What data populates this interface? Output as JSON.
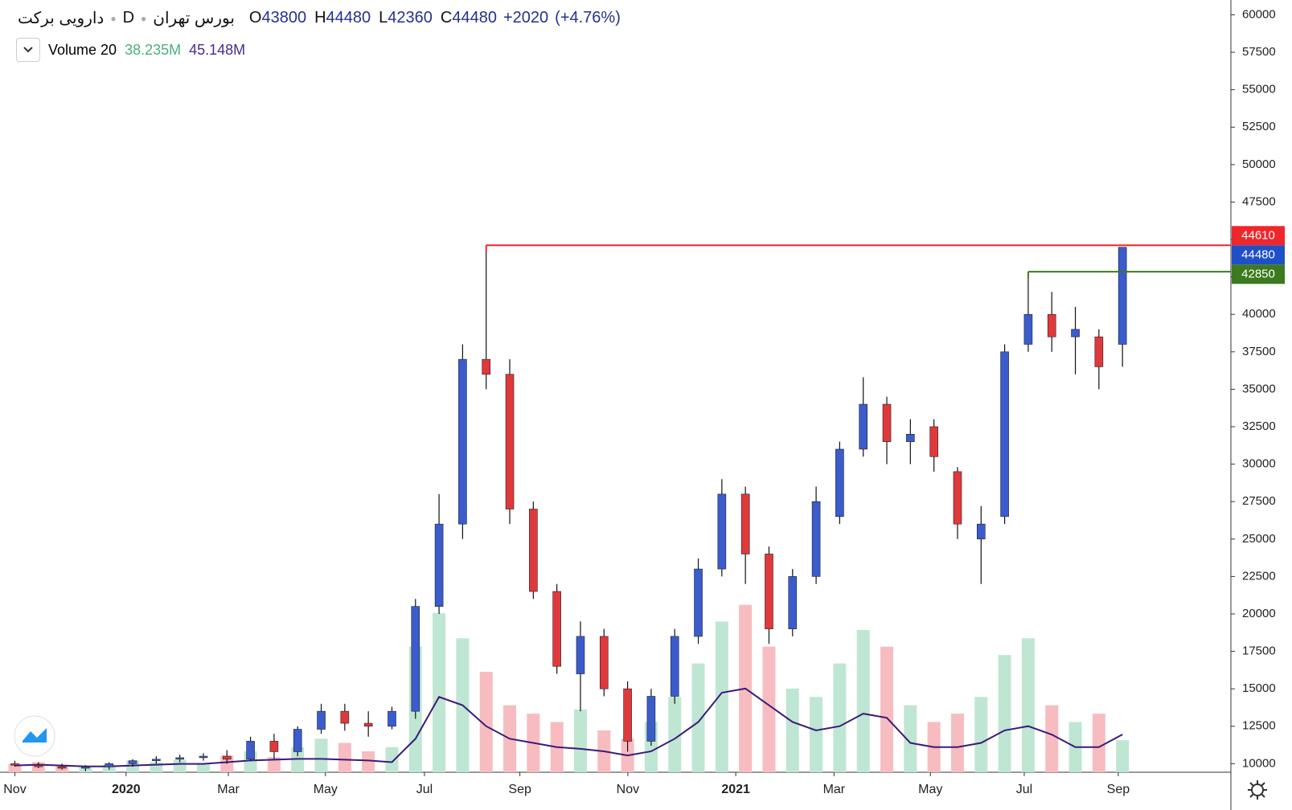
{
  "header": {
    "symbol": "دارویی برکت",
    "interval": "D",
    "exchange": "بورس تهران",
    "ohlc": [
      {
        "key": "O",
        "value": 43800
      },
      {
        "key": "H",
        "value": 44480
      },
      {
        "key": "L",
        "value": 42360
      },
      {
        "key": "C",
        "value": 44480
      }
    ],
    "change": {
      "value": 2020,
      "label": "+2020"
    },
    "change_pct": {
      "value": 4.76,
      "label": "(+4.76%)"
    }
  },
  "legend": {
    "name": "Volume 20",
    "volume": {
      "value": 38.235,
      "label": "38.235M"
    },
    "ma": {
      "value": 45.148,
      "label": "45.148M"
    }
  },
  "chart_data": {
    "type": "candlestick",
    "open": [
      10000,
      9900,
      9800,
      9700,
      9800,
      10000,
      10200,
      10300,
      10400,
      10500,
      10300,
      11500,
      10800,
      12300,
      13500,
      12700,
      12500,
      13500,
      20500,
      26000,
      37000,
      36000,
      27000,
      21500,
      16000,
      18500,
      15000,
      11500,
      14500,
      18500,
      23000,
      28000,
      24000,
      19000,
      22500,
      26500,
      31000,
      34000,
      31500,
      32500,
      29500,
      25000,
      26500,
      38000,
      40000,
      38500,
      38500,
      38000
    ],
    "high": [
      10200,
      10100,
      10000,
      9900,
      10100,
      10300,
      10500,
      10600,
      10700,
      10900,
      11800,
      12000,
      12500,
      14000,
      14000,
      13500,
      13800,
      21000,
      28000,
      38000,
      44610,
      37000,
      27500,
      22000,
      19500,
      19000,
      15500,
      15000,
      19000,
      23700,
      29000,
      28500,
      24500,
      23000,
      28500,
      31500,
      35800,
      34500,
      33000,
      33000,
      29800,
      27200,
      38000,
      42850,
      41500,
      40500,
      39000,
      44480
    ],
    "low": [
      9800,
      9700,
      9600,
      9500,
      9600,
      9800,
      10000,
      10100,
      10200,
      10000,
      10200,
      10300,
      10500,
      12000,
      12200,
      11800,
      12300,
      13000,
      20000,
      25000,
      35000,
      26000,
      21000,
      16000,
      13500,
      14500,
      10800,
      11200,
      14000,
      18000,
      22500,
      22000,
      18000,
      18500,
      22000,
      26000,
      30500,
      30000,
      30000,
      29500,
      25000,
      22000,
      26000,
      37500,
      37500,
      36000,
      35000,
      36500
    ],
    "close": [
      9900,
      9800,
      9700,
      9800,
      10000,
      10200,
      10300,
      10400,
      10500,
      10300,
      11500,
      10800,
      12300,
      13500,
      12700,
      12500,
      13500,
      20500,
      26000,
      37000,
      36000,
      27000,
      21500,
      16500,
      18500,
      15000,
      11500,
      14500,
      18500,
      23000,
      28000,
      24000,
      19000,
      22500,
      27500,
      31000,
      34000,
      31500,
      32000,
      30500,
      26000,
      26000,
      37500,
      40000,
      38500,
      39000,
      36500,
      44480
    ],
    "up_color": "#3a5ccc",
    "down_color": "#e0393b",
    "wick_color": "#111111",
    "ylim": [
      9430,
      60990
    ],
    "yticks": [
      10000,
      12500,
      15000,
      17500,
      20000,
      22500,
      25000,
      27500,
      30000,
      32500,
      35000,
      37500,
      40000,
      42500,
      45000,
      47500,
      50000,
      52500,
      55000,
      57500,
      60000
    ],
    "xlim": [
      -0.63,
      51.6
    ],
    "xticks": [
      {
        "value": 0,
        "label": "Nov"
      },
      {
        "value": 4.72,
        "label": "2020"
      },
      {
        "value": 9.06,
        "label": "Mar"
      },
      {
        "value": 13.18,
        "label": "May"
      },
      {
        "value": 17.38,
        "label": "Jul"
      },
      {
        "value": 21.43,
        "label": "Sep"
      },
      {
        "value": 26.01,
        "label": "Nov"
      },
      {
        "value": 30.59,
        "label": "2021"
      },
      {
        "value": 34.76,
        "label": "Mar"
      },
      {
        "value": 38.85,
        "label": "May"
      },
      {
        "value": 42.83,
        "label": "Jul"
      },
      {
        "value": 46.82,
        "label": "Sep"
      }
    ],
    "grid": false,
    "price_lines": [
      {
        "value": 44610,
        "color": "#f0262b",
        "line": true
      },
      {
        "value": 44480,
        "color": "#1f50c8",
        "line": false
      },
      {
        "value": 42850,
        "color": "#3c7a1e",
        "line": true
      }
    ],
    "volume": {
      "ylim": [
        0,
        240
      ],
      "up_color": "#bfe6d3",
      "down_color": "#f7bcc0",
      "ma_color": "#3c1a78",
      "values": [
        10,
        12,
        8,
        6,
        9,
        14,
        12,
        15,
        10,
        20,
        25,
        18,
        30,
        40,
        35,
        25,
        30,
        150,
        190,
        160,
        120,
        80,
        70,
        60,
        75,
        50,
        40,
        60,
        90,
        130,
        180,
        200,
        150,
        100,
        90,
        130,
        170,
        150,
        80,
        60,
        70,
        90,
        140,
        160,
        80,
        60,
        70,
        38.235
      ],
      "ma": [
        8,
        9,
        8,
        7,
        7,
        8,
        9,
        10,
        10,
        12,
        14,
        15,
        16,
        16,
        15,
        14,
        12,
        40,
        90,
        80,
        55,
        40,
        35,
        30,
        28,
        25,
        20,
        25,
        40,
        60,
        95,
        100,
        80,
        60,
        50,
        55,
        70,
        65,
        35,
        30,
        30,
        35,
        50,
        55,
        45,
        30,
        30,
        45.148
      ]
    }
  }
}
